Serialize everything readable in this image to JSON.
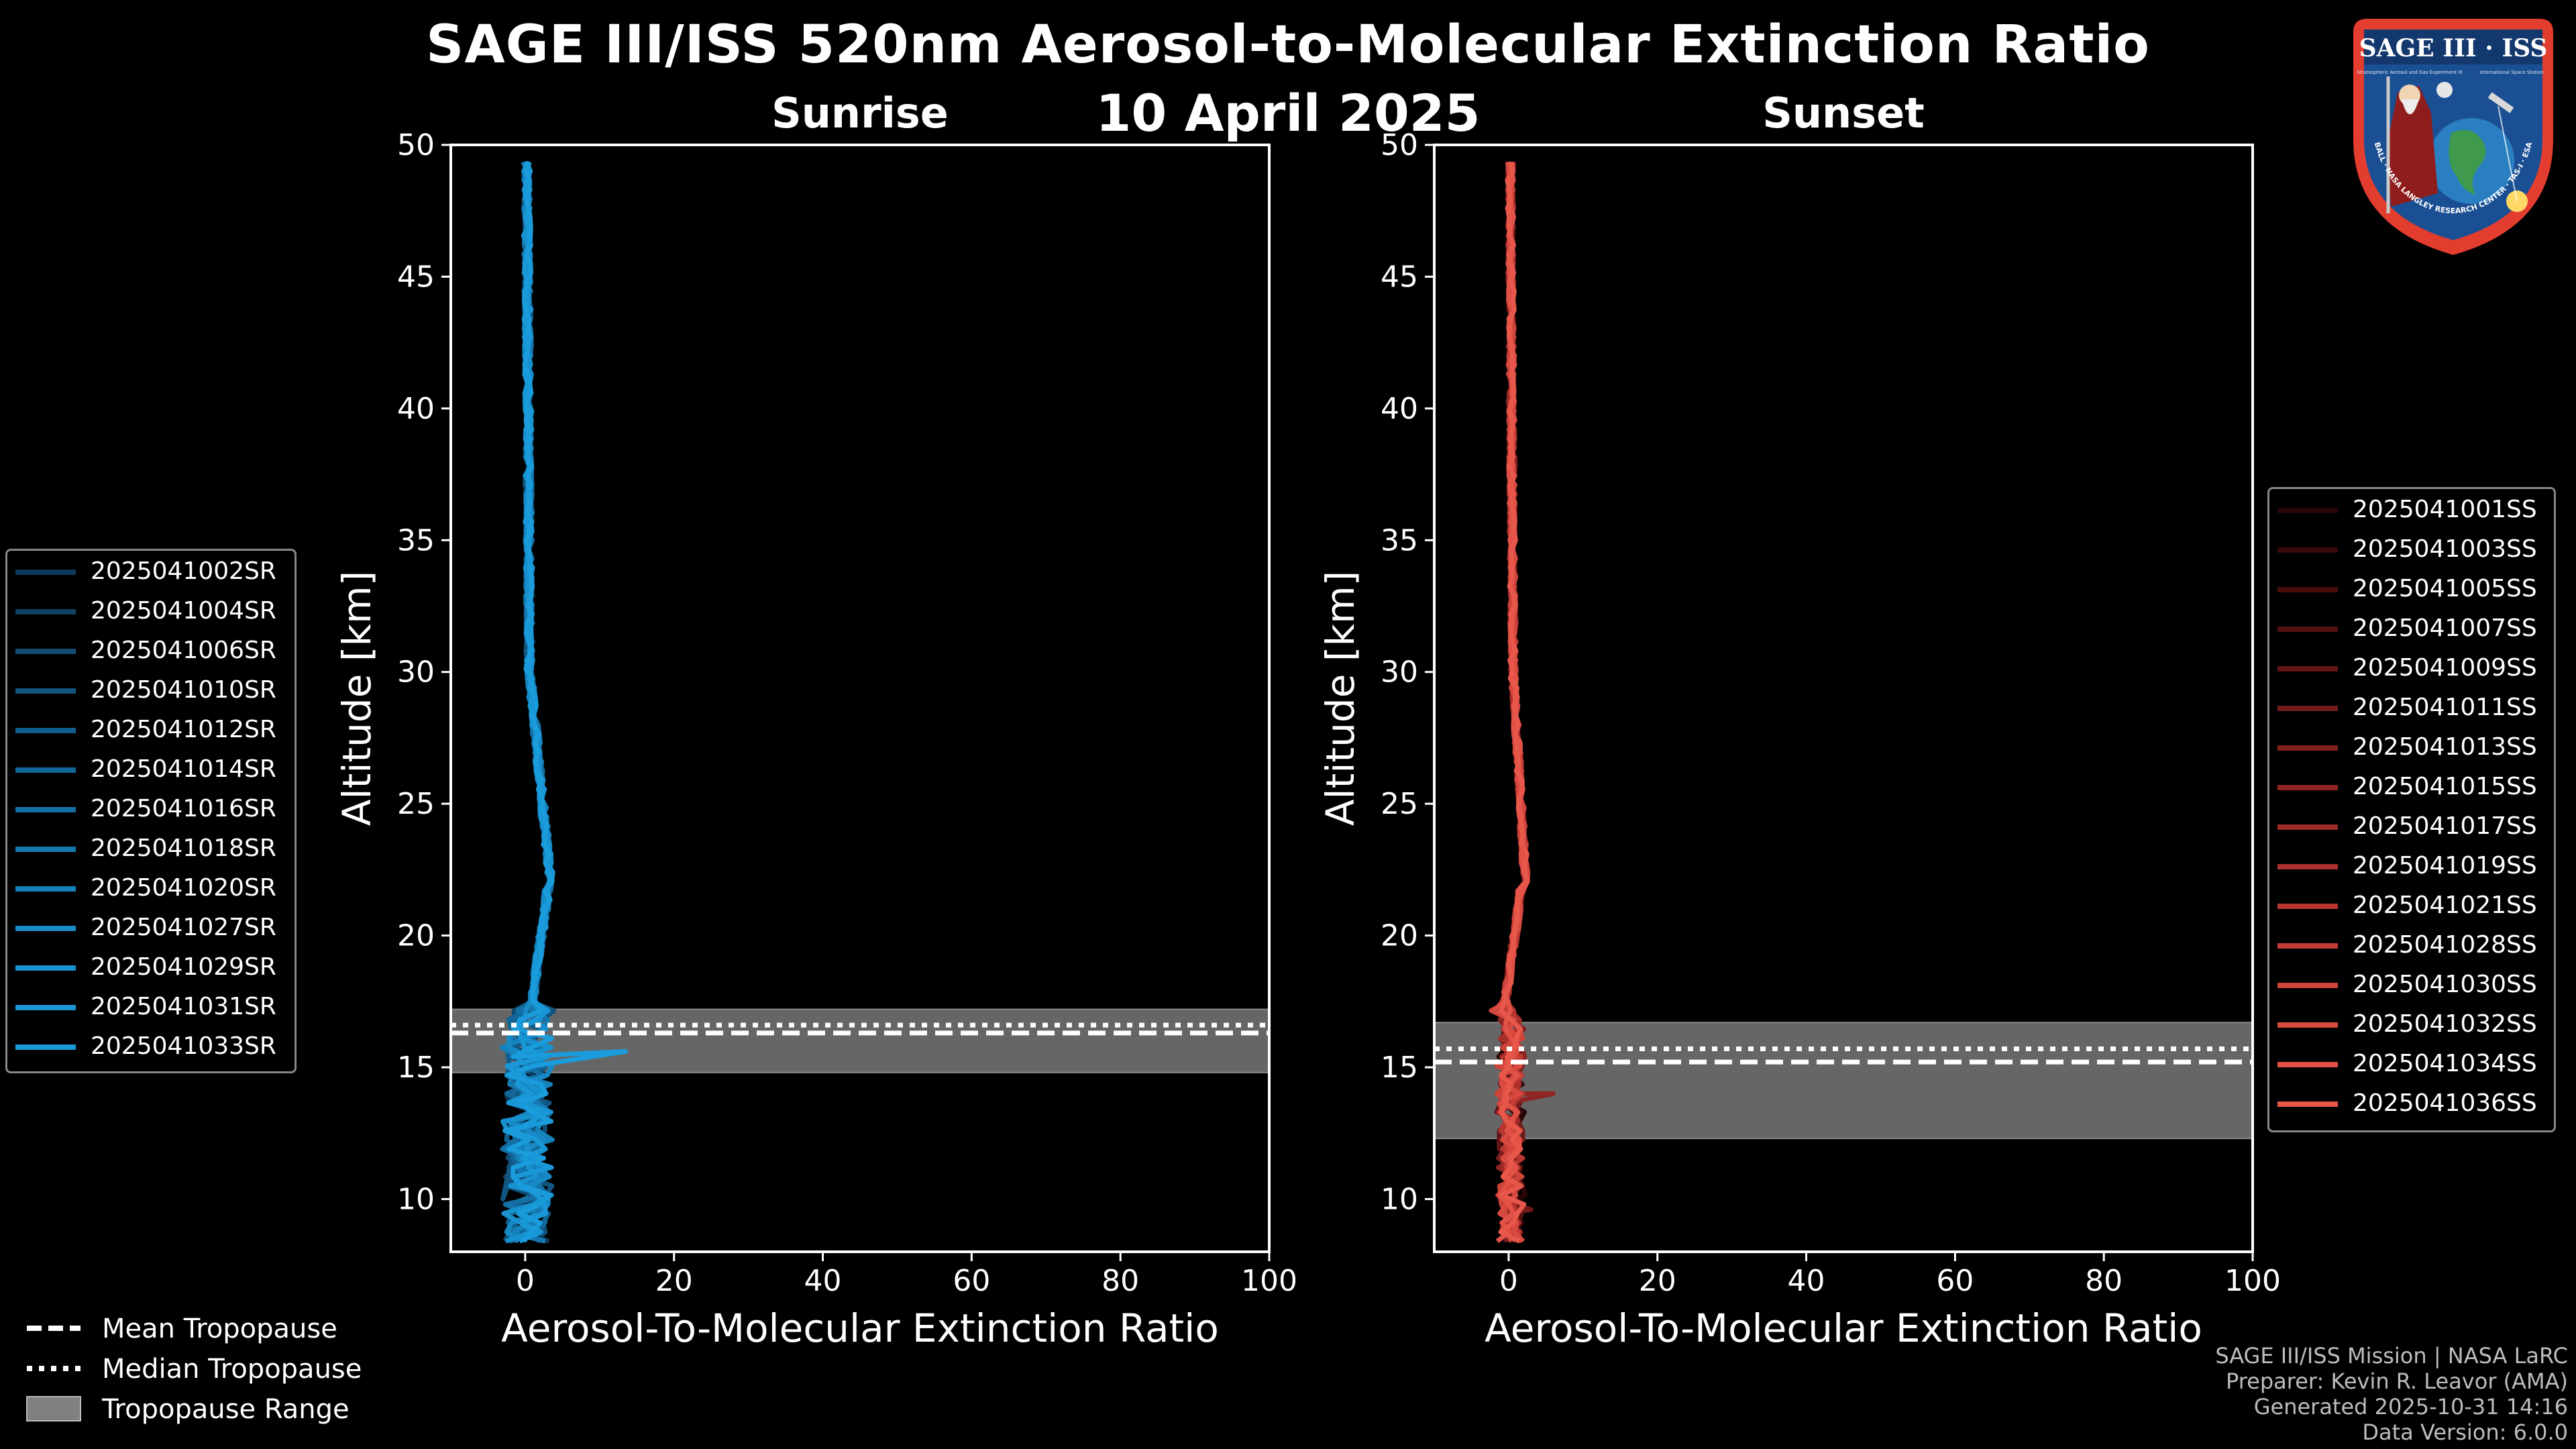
{
  "title": "SAGE III/ISS 520nm Aerosol-to-Molecular Extinction Ratio",
  "date": "10 April 2025",
  "colors": {
    "background": "#000000",
    "sunrise_line": "#1f8fd0",
    "sunset_line": "#e8584a",
    "tropopause_fill": "#808080",
    "axes": "#ffffff"
  },
  "chart_data": [
    {
      "type": "line",
      "panel": "sunrise",
      "title": "Sunrise",
      "xlabel": "Aerosol-To-Molecular Extinction Ratio",
      "ylabel": "Altitude [km]",
      "xlim": [
        -10,
        100
      ],
      "ylim": [
        8,
        50
      ],
      "xticks": [
        "0",
        "20",
        "40",
        "60",
        "80",
        "100"
      ],
      "yticks": [
        "10",
        "15",
        "20",
        "25",
        "30",
        "35",
        "40",
        "45",
        "50"
      ],
      "tropopause": {
        "mean": 16.3,
        "median": 16.6,
        "range": [
          14.8,
          17.2
        ]
      },
      "legend_location": "left",
      "series": [
        {
          "name": "2025041002SR",
          "color": "#0d3a5a"
        },
        {
          "name": "2025041004SR",
          "color": "#0e4366"
        },
        {
          "name": "2025041006SR",
          "color": "#104c73"
        },
        {
          "name": "2025041010SR",
          "color": "#115580"
        },
        {
          "name": "2025041012SR",
          "color": "#125e8c"
        },
        {
          "name": "2025041014SR",
          "color": "#136798"
        },
        {
          "name": "2025041016SR",
          "color": "#1470a4"
        },
        {
          "name": "2025041018SR",
          "color": "#1579b0"
        },
        {
          "name": "2025041020SR",
          "color": "#1682bc"
        },
        {
          "name": "2025041027SR",
          "color": "#178ac6"
        },
        {
          "name": "2025041029SR",
          "color": "#1891cf"
        },
        {
          "name": "2025041031SR",
          "color": "#1997d6"
        },
        {
          "name": "2025041033SR",
          "color": "#1a9cdc"
        }
      ]
    },
    {
      "type": "line",
      "panel": "sunset",
      "title": "Sunset",
      "xlabel": "Aerosol-To-Molecular Extinction Ratio",
      "ylabel": "Altitude [km]",
      "xlim": [
        -10,
        100
      ],
      "ylim": [
        8,
        50
      ],
      "xticks": [
        "0",
        "20",
        "40",
        "60",
        "80",
        "100"
      ],
      "yticks": [
        "10",
        "15",
        "20",
        "25",
        "30",
        "35",
        "40",
        "45",
        "50"
      ],
      "tropopause": {
        "mean": 15.2,
        "median": 15.7,
        "range": [
          12.3,
          16.7
        ]
      },
      "legend_location": "right",
      "series": [
        {
          "name": "2025041001SS",
          "color": "#2a0505"
        },
        {
          "name": "2025041003SS",
          "color": "#380909"
        },
        {
          "name": "2025041005SS",
          "color": "#470d0d"
        },
        {
          "name": "2025041007SS",
          "color": "#551111"
        },
        {
          "name": "2025041009SS",
          "color": "#641616"
        },
        {
          "name": "2025041011SS",
          "color": "#721b1a"
        },
        {
          "name": "2025041013SS",
          "color": "#80201e"
        },
        {
          "name": "2025041015SS",
          "color": "#8e2522"
        },
        {
          "name": "2025041017SS",
          "color": "#9c2b27"
        },
        {
          "name": "2025041019SS",
          "color": "#aa302b"
        },
        {
          "name": "2025041021SS",
          "color": "#b73630"
        },
        {
          "name": "2025041028SS",
          "color": "#c33c35"
        },
        {
          "name": "2025041030SS",
          "color": "#ce433a"
        },
        {
          "name": "2025041032SS",
          "color": "#d84a40"
        },
        {
          "name": "2025041034SS",
          "color": "#e15146"
        },
        {
          "name": "2025041036SS",
          "color": "#e8584a"
        }
      ]
    }
  ],
  "tropopause_legend": {
    "mean": "Mean Tropopause",
    "median": "Median Tropopause",
    "range": "Tropopause Range"
  },
  "footer": {
    "line1": "SAGE III/ISS Mission | NASA LaRC",
    "line2": "Preparer: Kevin R. Leavor (AMA)",
    "line3": "Generated 2025-10-31 14:16",
    "line4": "Data Version: 6.0.0"
  },
  "logo": {
    "top_text": "SAGE III · ISS",
    "sub_left": "Stratospheric Aerosol and Gas Experiment III",
    "sub_right": "International Space Station",
    "ring_text": "BALL · NASA LANGLEY RESEARCH CENTER · TAS-I · ESA"
  }
}
